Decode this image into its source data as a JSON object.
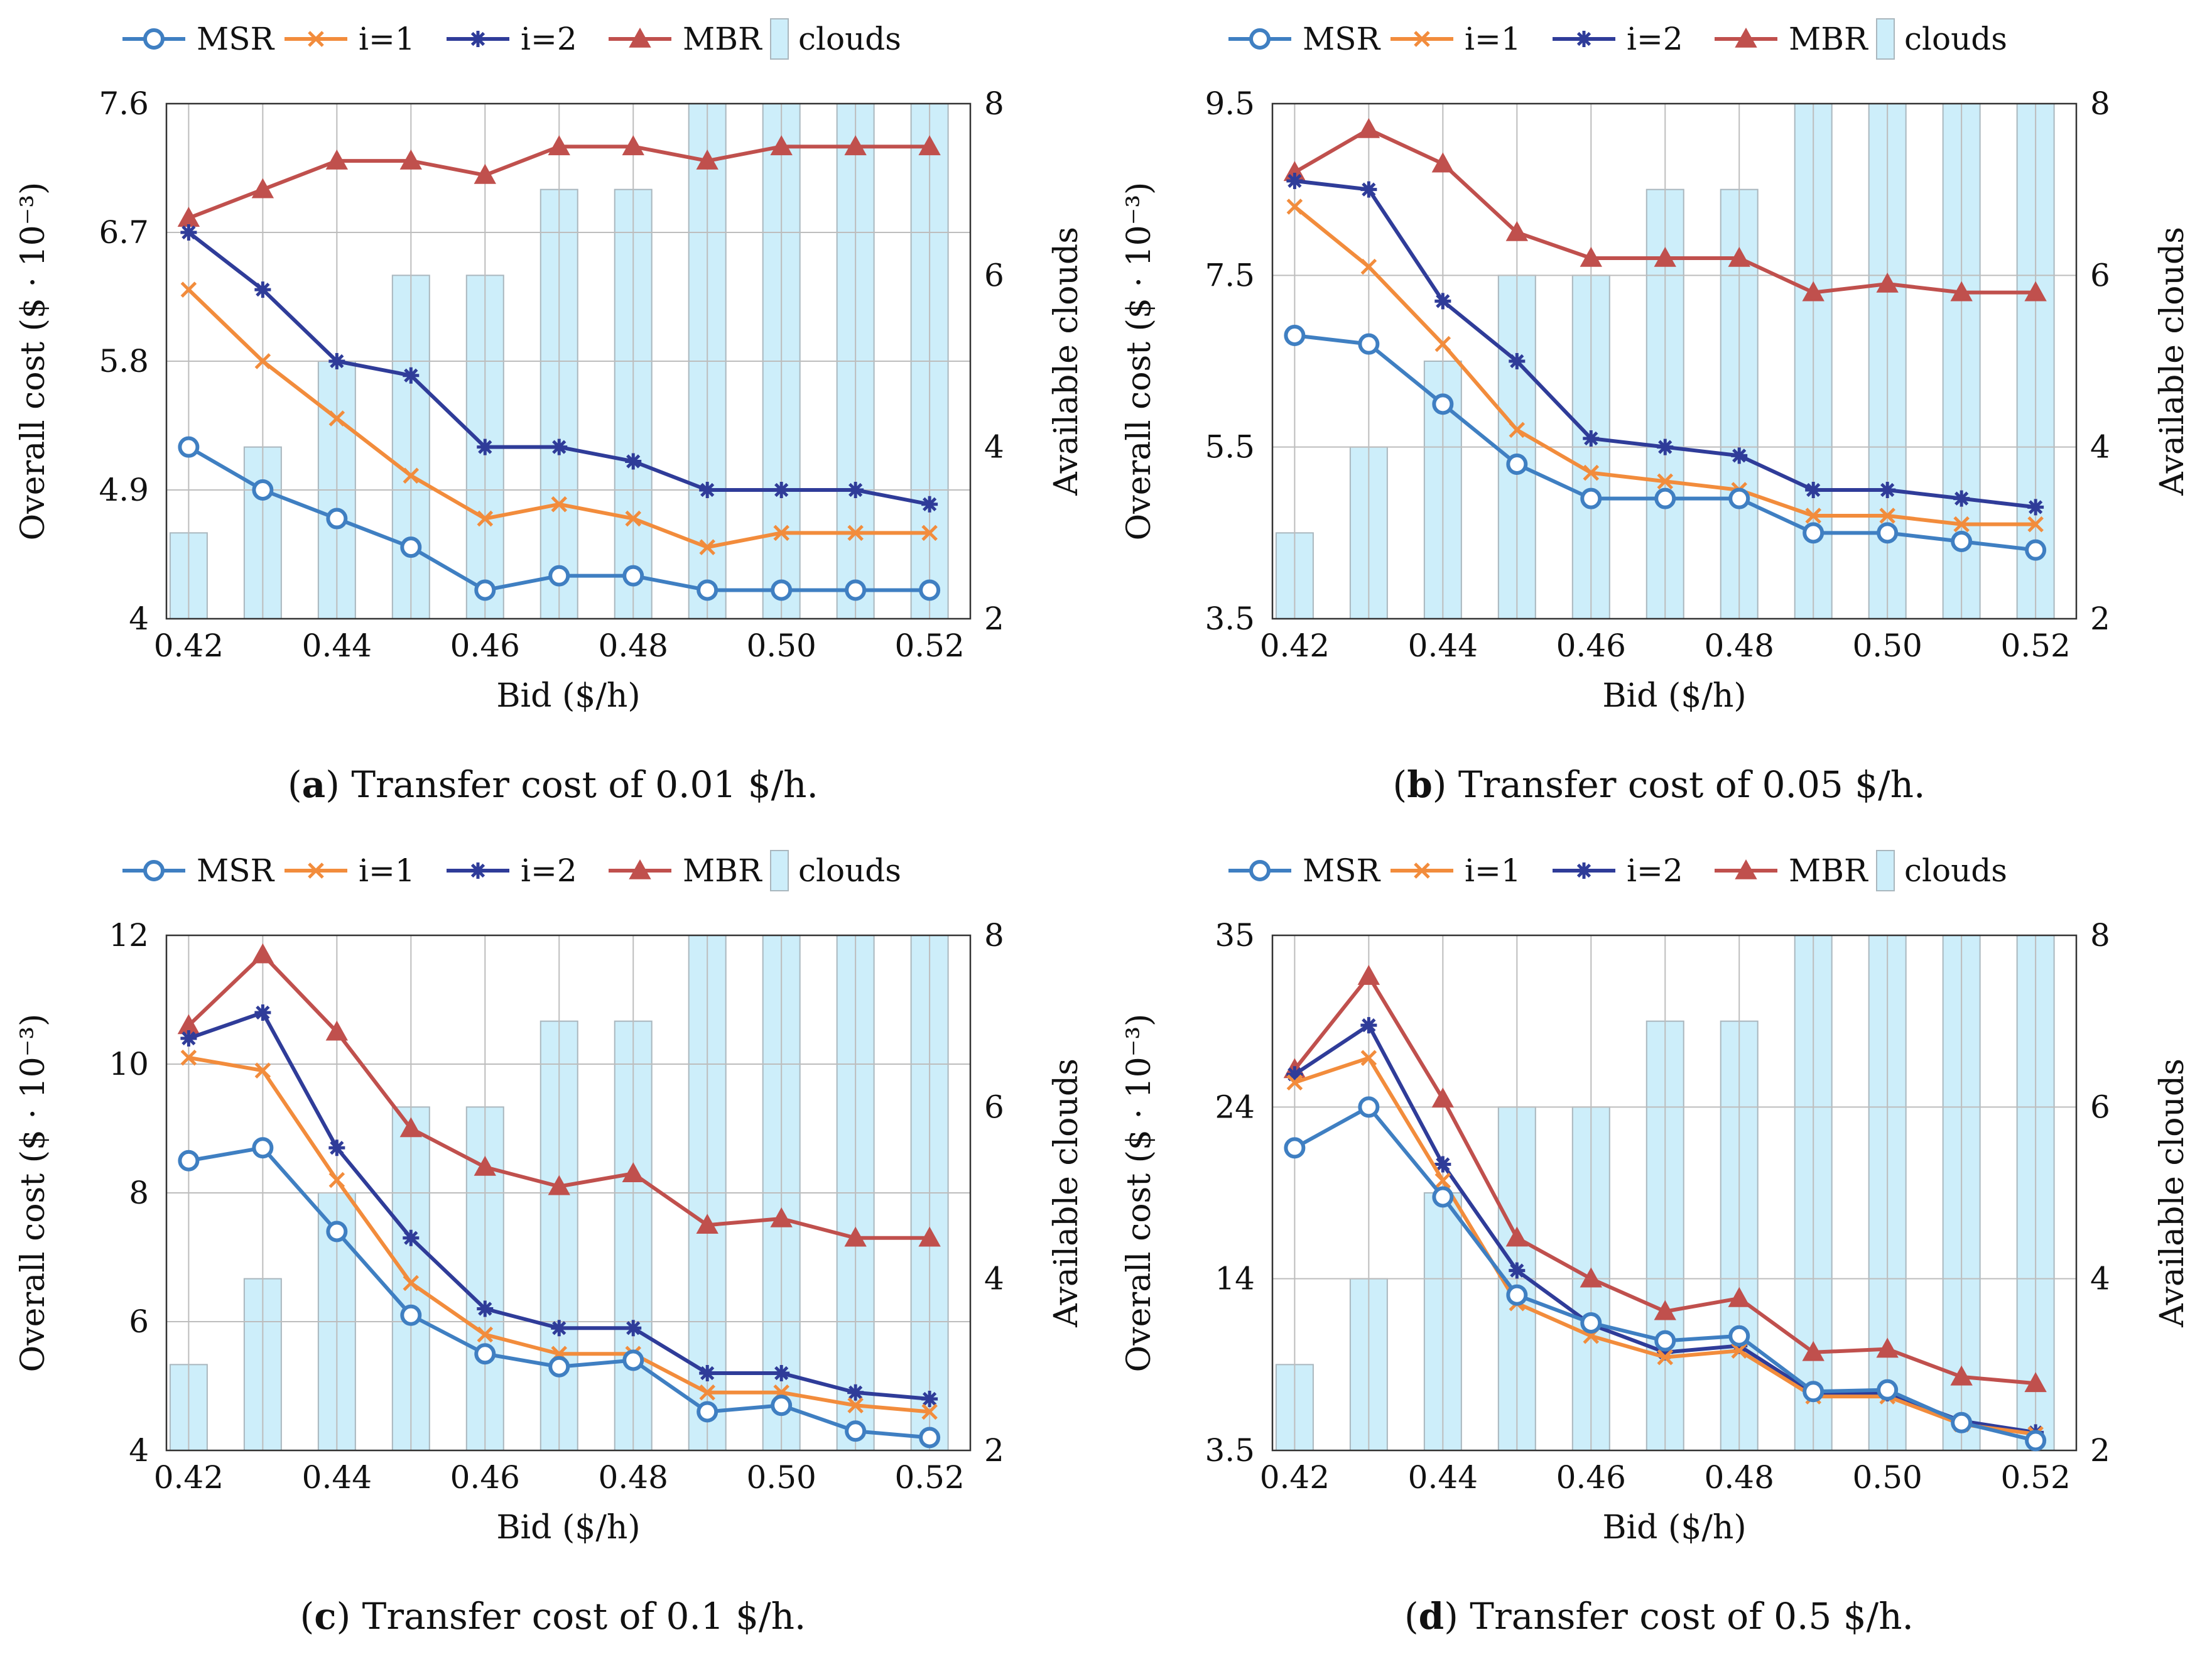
{
  "chart_data": [
    {
      "type": "line",
      "panel_letter": "a",
      "caption": "Transfer cost of 0.01 $/h.",
      "xlabel": "Bid ($/h)",
      "ylabel": "Overall cost ($ · 10⁻³)",
      "y2label": "Available clouds",
      "categories": [
        "0.42",
        "0.43",
        "0.44",
        "0.45",
        "0.46",
        "0.47",
        "0.48",
        "0.49",
        "0.50",
        "0.51",
        "0.52"
      ],
      "xticks": [
        "0.42",
        "0.44",
        "0.46",
        "0.48",
        "0.50",
        "0.52"
      ],
      "ylim": [
        4,
        7.6
      ],
      "yticks": [
        "4",
        "4.9",
        "5.8",
        "6.7",
        "7.6"
      ],
      "y2lim": [
        2,
        8
      ],
      "y2ticks": [
        "2",
        "4",
        "6",
        "8"
      ],
      "clouds": [
        3,
        4,
        5,
        6,
        6,
        7,
        7,
        8,
        8,
        8,
        8
      ],
      "series": [
        {
          "name": "MSR",
          "color": "#3f7fc2",
          "marker": "circle",
          "values": [
            5.2,
            4.9,
            4.7,
            4.5,
            4.2,
            4.3,
            4.3,
            4.2,
            4.2,
            4.2,
            4.2
          ]
        },
        {
          "name": "i=1",
          "color": "#f28c3c",
          "marker": "x",
          "values": [
            6.3,
            5.8,
            5.4,
            5.0,
            4.7,
            4.8,
            4.7,
            4.5,
            4.6,
            4.6,
            4.6
          ]
        },
        {
          "name": "i=2",
          "color": "#2f3c99",
          "marker": "star",
          "values": [
            6.7,
            6.3,
            5.8,
            5.7,
            5.2,
            5.2,
            5.1,
            4.9,
            4.9,
            4.9,
            4.8
          ]
        },
        {
          "name": "MBR",
          "color": "#c0504d",
          "marker": "triangle",
          "values": [
            6.8,
            7.0,
            7.2,
            7.2,
            7.1,
            7.3,
            7.3,
            7.2,
            7.3,
            7.3,
            7.3
          ]
        }
      ],
      "bars_legend": "clouds"
    },
    {
      "type": "line",
      "panel_letter": "b",
      "caption": "Transfer cost of 0.05 $/h.",
      "xlabel": "Bid ($/h)",
      "ylabel": "Overall cost ($ · 10⁻³)",
      "y2label": "Available clouds",
      "categories": [
        "0.42",
        "0.43",
        "0.44",
        "0.45",
        "0.46",
        "0.47",
        "0.48",
        "0.49",
        "0.50",
        "0.51",
        "0.52"
      ],
      "xticks": [
        "0.42",
        "0.44",
        "0.46",
        "0.48",
        "0.50",
        "0.52"
      ],
      "ylim": [
        3.5,
        9.5
      ],
      "yticks": [
        "3.5",
        "5.5",
        "7.5",
        "9.5"
      ],
      "y2lim": [
        2,
        8
      ],
      "y2ticks": [
        "2",
        "4",
        "6",
        "8"
      ],
      "clouds": [
        3,
        4,
        5,
        6,
        6,
        7,
        7,
        8,
        8,
        8,
        8
      ],
      "series": [
        {
          "name": "MSR",
          "color": "#3f7fc2",
          "marker": "circle",
          "values": [
            6.8,
            6.7,
            6.0,
            5.3,
            4.9,
            4.9,
            4.9,
            4.5,
            4.5,
            4.4,
            4.3
          ]
        },
        {
          "name": "i=1",
          "color": "#f28c3c",
          "marker": "x",
          "values": [
            8.3,
            7.6,
            6.7,
            5.7,
            5.2,
            5.1,
            5.0,
            4.7,
            4.7,
            4.6,
            4.6
          ]
        },
        {
          "name": "i=2",
          "color": "#2f3c99",
          "marker": "star",
          "values": [
            8.6,
            8.5,
            7.2,
            6.5,
            5.6,
            5.5,
            5.4,
            5.0,
            5.0,
            4.9,
            4.8
          ]
        },
        {
          "name": "MBR",
          "color": "#c0504d",
          "marker": "triangle",
          "values": [
            8.7,
            9.2,
            8.8,
            8.0,
            7.7,
            7.7,
            7.7,
            7.3,
            7.4,
            7.3,
            7.3
          ]
        }
      ],
      "bars_legend": "clouds"
    },
    {
      "type": "line",
      "panel_letter": "c",
      "caption": "Transfer cost of 0.1 $/h.",
      "xlabel": "Bid ($/h)",
      "ylabel": "Overall cost ($ · 10⁻³)",
      "y2label": "Available clouds",
      "categories": [
        "0.42",
        "0.43",
        "0.44",
        "0.45",
        "0.46",
        "0.47",
        "0.48",
        "0.49",
        "0.50",
        "0.51",
        "0.52"
      ],
      "xticks": [
        "0.42",
        "0.44",
        "0.46",
        "0.48",
        "0.50",
        "0.52"
      ],
      "ylim": [
        4,
        12
      ],
      "yticks": [
        "4",
        "6",
        "8",
        "10",
        "12"
      ],
      "y2lim": [
        2,
        8
      ],
      "y2ticks": [
        "2",
        "4",
        "6",
        "8"
      ],
      "clouds": [
        3,
        4,
        5,
        6,
        6,
        7,
        7,
        8,
        8,
        8,
        8
      ],
      "series": [
        {
          "name": "MSR",
          "color": "#3f7fc2",
          "marker": "circle",
          "values": [
            8.5,
            8.7,
            7.4,
            6.1,
            5.5,
            5.3,
            5.4,
            4.6,
            4.7,
            4.3,
            4.2
          ]
        },
        {
          "name": "i=1",
          "color": "#f28c3c",
          "marker": "x",
          "values": [
            10.1,
            9.9,
            8.2,
            6.6,
            5.8,
            5.5,
            5.5,
            4.9,
            4.9,
            4.7,
            4.6
          ]
        },
        {
          "name": "i=2",
          "color": "#2f3c99",
          "marker": "star",
          "values": [
            10.4,
            10.8,
            8.7,
            7.3,
            6.2,
            5.9,
            5.9,
            5.2,
            5.2,
            4.9,
            4.8
          ]
        },
        {
          "name": "MBR",
          "color": "#c0504d",
          "marker": "triangle",
          "values": [
            10.6,
            11.7,
            10.5,
            9.0,
            8.4,
            8.1,
            8.3,
            7.5,
            7.6,
            7.3,
            7.3
          ]
        }
      ],
      "bars_legend": "clouds"
    },
    {
      "type": "line",
      "panel_letter": "d",
      "caption": "Transfer cost of 0.5 $/h.",
      "xlabel": "Bid ($/h)",
      "ylabel": "Overall cost ($ · 10⁻³)",
      "y2label": "Available clouds",
      "categories": [
        "0.42",
        "0.43",
        "0.44",
        "0.45",
        "0.46",
        "0.47",
        "0.48",
        "0.49",
        "0.50",
        "0.51",
        "0.52"
      ],
      "xticks": [
        "0.42",
        "0.44",
        "0.46",
        "0.48",
        "0.50",
        "0.52"
      ],
      "ylim": [
        3.5,
        35
      ],
      "yticks": [
        "3.5",
        "14",
        "24",
        "35"
      ],
      "y2lim": [
        2,
        8
      ],
      "y2ticks": [
        "2",
        "4",
        "6",
        "8"
      ],
      "clouds": [
        3,
        4,
        5,
        6,
        6,
        7,
        7,
        8,
        8,
        8,
        8
      ],
      "series": [
        {
          "name": "MSR",
          "color": "#3f7fc2",
          "marker": "circle",
          "values": [
            22,
            24.5,
            19,
            13,
            11.3,
            10.2,
            10.5,
            7.1,
            7.2,
            5.2,
            4.1
          ]
        },
        {
          "name": "i=1",
          "color": "#f28c3c",
          "marker": "x",
          "values": [
            26,
            27.5,
            20,
            12.5,
            10.5,
            9.2,
            9.6,
            6.8,
            6.8,
            5.1,
            4.5
          ]
        },
        {
          "name": "i=2",
          "color": "#2f3c99",
          "marker": "star",
          "values": [
            26.5,
            29.5,
            21,
            14.5,
            11.2,
            9.5,
            9.9,
            7.0,
            7.0,
            5.3,
            4.6
          ]
        },
        {
          "name": "MBR",
          "color": "#c0504d",
          "marker": "triangle",
          "values": [
            26.8,
            32.5,
            25,
            16.5,
            14,
            12,
            12.8,
            9.5,
            9.7,
            8.0,
            7.6
          ]
        }
      ],
      "bars_legend": "clouds"
    }
  ],
  "colors": {
    "bar_fill": "#cdeefa",
    "bar_stroke": "#aab7be",
    "grid": "#bdbdbd",
    "axis": "#333333"
  }
}
